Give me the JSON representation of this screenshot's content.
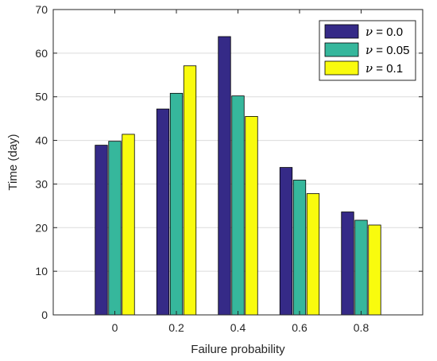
{
  "chart_data": {
    "type": "bar",
    "title": "",
    "xlabel": "Failure probability",
    "ylabel": "Time (day)",
    "categories": [
      "0",
      "0.2",
      "0.4",
      "0.6",
      "0.8"
    ],
    "ylim": [
      0,
      70
    ],
    "yticks": [
      "0",
      "10",
      "20",
      "30",
      "40",
      "50",
      "60",
      "70"
    ],
    "grid": "horizontal",
    "legend_position": "top-right",
    "series": [
      {
        "name": "ν = 0.0",
        "legend_var": "ν",
        "legend_rest": " = 0.0",
        "color": "#352a87",
        "values": [
          38.9,
          47.2,
          63.8,
          33.8,
          23.6
        ]
      },
      {
        "name": "ν = 0.05",
        "legend_var": "ν",
        "legend_rest": " = 0.05",
        "color": "#36b79c",
        "values": [
          39.8,
          50.8,
          50.2,
          30.9,
          21.7
        ]
      },
      {
        "name": "ν = 0.1",
        "legend_var": "ν",
        "legend_rest": " = 0.1",
        "color": "#f9fb0e",
        "values": [
          41.4,
          57.1,
          45.5,
          27.8,
          20.6
        ]
      }
    ]
  }
}
